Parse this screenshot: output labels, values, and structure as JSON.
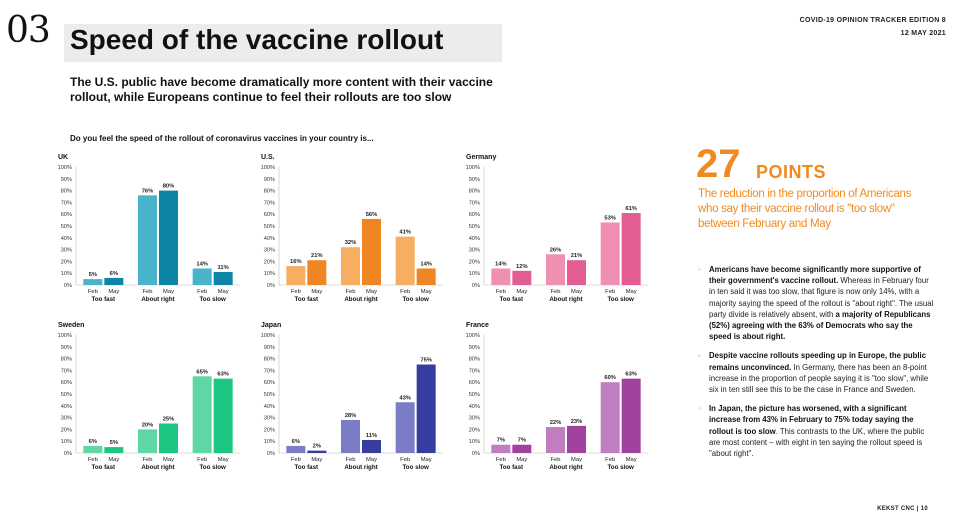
{
  "header": {
    "page_number": "03",
    "title": "Speed of the vaccine rollout",
    "edition": "COVID-19 OPINION TRACKER EDITION 8",
    "date": "12 MAY 2021"
  },
  "subtitle": "The U.S. public have become dramatically more content with their vaccine rollout, while Europeans continue to feel their rollouts are too slow",
  "question": "Do you feel the speed of the rollout of coronavirus vaccines in your country is...",
  "highlight": {
    "number": "27",
    "unit": "POINTS",
    "caption": "The reduction in the proportion of Americans who say their vaccine rollout is \"too slow\" between February and May"
  },
  "bullets": [
    {
      "bold": "Americans have become significantly more supportive of their government's vaccine rollout.",
      "rest": " Whereas in February four in ten said it was too slow, that figure is now only 14%, with a majority saying the speed of the rollout is \"about right\". The usual party divide is relatively absent, with ",
      "bold2": "a majority of Republicans (52%) agreeing with the 63% of Democrats who say the speed is about right."
    },
    {
      "bold": "Despite vaccine rollouts speeding up in Europe, the public remains unconvinced.",
      "rest": " In Germany, there has been an 8-point increase in the proportion of people saying it is \"too slow\", while six in ten still see this to be the case in France and Sweden.",
      "bold2": ""
    },
    {
      "bold": "In Japan, the picture has worsened, with a significant increase from 43% in February to 75% today saying the rollout is too slow",
      "rest": ". This contrasts to the UK, where the public are most content – with eight in ten saying the rollout speed is \"about right\".",
      "bold2": ""
    }
  ],
  "footer": "KEKST CNC | 10",
  "chart_data": [
    {
      "type": "bar",
      "title": "UK",
      "categories": [
        "Too fast",
        "About right",
        "Too slow"
      ],
      "subcategories": [
        "Feb",
        "May"
      ],
      "series": [
        {
          "name": "Feb",
          "values": [
            5,
            76,
            14
          ]
        },
        {
          "name": "May",
          "values": [
            6,
            80,
            11
          ]
        }
      ],
      "colors": {
        "feb": "#4ab3cc",
        "may": "#0e85a6"
      },
      "ylim": [
        0,
        100
      ],
      "yticks": [
        "0%",
        "10%",
        "20%",
        "30%",
        "40%",
        "50%",
        "60%",
        "70%",
        "80%",
        "90%",
        "100%"
      ]
    },
    {
      "type": "bar",
      "title": "U.S.",
      "categories": [
        "Too fast",
        "About right",
        "Too slow"
      ],
      "subcategories": [
        "Feb",
        "May"
      ],
      "series": [
        {
          "name": "Feb",
          "values": [
            16,
            32,
            41
          ]
        },
        {
          "name": "May",
          "values": [
            21,
            56,
            14
          ]
        }
      ],
      "colors": {
        "feb": "#f7ad62",
        "may": "#f08523"
      },
      "ylim": [
        0,
        100
      ],
      "yticks": [
        "0%",
        "10%",
        "20%",
        "30%",
        "40%",
        "50%",
        "60%",
        "70%",
        "80%",
        "90%",
        "100%"
      ]
    },
    {
      "type": "bar",
      "title": "Germany",
      "categories": [
        "Too fast",
        "About right",
        "Too slow"
      ],
      "subcategories": [
        "Feb",
        "May"
      ],
      "series": [
        {
          "name": "Feb",
          "values": [
            14,
            26,
            53
          ]
        },
        {
          "name": "May",
          "values": [
            12,
            21,
            61
          ]
        }
      ],
      "colors": {
        "feb": "#ef8fb2",
        "may": "#e15d92"
      },
      "ylim": [
        0,
        100
      ],
      "yticks": [
        "0%",
        "10%",
        "20%",
        "30%",
        "40%",
        "50%",
        "60%",
        "70%",
        "80%",
        "90%",
        "100%"
      ]
    },
    {
      "type": "bar",
      "title": "Sweden",
      "categories": [
        "Too fast",
        "About right",
        "Too slow"
      ],
      "subcategories": [
        "Feb",
        "May"
      ],
      "series": [
        {
          "name": "Feb",
          "values": [
            6,
            20,
            65
          ]
        },
        {
          "name": "May",
          "values": [
            5,
            25,
            63
          ]
        }
      ],
      "colors": {
        "feb": "#5ed7a4",
        "may": "#1cc680"
      },
      "ylim": [
        0,
        100
      ],
      "yticks": [
        "0%",
        "10%",
        "20%",
        "30%",
        "40%",
        "50%",
        "60%",
        "70%",
        "80%",
        "90%",
        "100%"
      ]
    },
    {
      "type": "bar",
      "title": "Japan",
      "categories": [
        "Too fast",
        "About right",
        "Too slow"
      ],
      "subcategories": [
        "Feb",
        "May"
      ],
      "series": [
        {
          "name": "Feb",
          "values": [
            6,
            28,
            43
          ]
        },
        {
          "name": "May",
          "values": [
            2,
            11,
            75
          ]
        }
      ],
      "colors": {
        "feb": "#7b7cc6",
        "may": "#353ea0"
      },
      "ylim": [
        0,
        100
      ],
      "yticks": [
        "0%",
        "10%",
        "20%",
        "30%",
        "40%",
        "50%",
        "60%",
        "70%",
        "80%",
        "90%",
        "100%"
      ]
    },
    {
      "type": "bar",
      "title": "France",
      "categories": [
        "Too fast",
        "About right",
        "Too slow"
      ],
      "subcategories": [
        "Feb",
        "May"
      ],
      "series": [
        {
          "name": "Feb",
          "values": [
            7,
            22,
            60
          ]
        },
        {
          "name": "May",
          "values": [
            7,
            23,
            63
          ]
        }
      ],
      "colors": {
        "feb": "#c07ec0",
        "may": "#a1429e"
      },
      "ylim": [
        0,
        100
      ],
      "yticks": [
        "0%",
        "10%",
        "20%",
        "30%",
        "40%",
        "50%",
        "60%",
        "70%",
        "80%",
        "90%",
        "100%"
      ]
    }
  ]
}
